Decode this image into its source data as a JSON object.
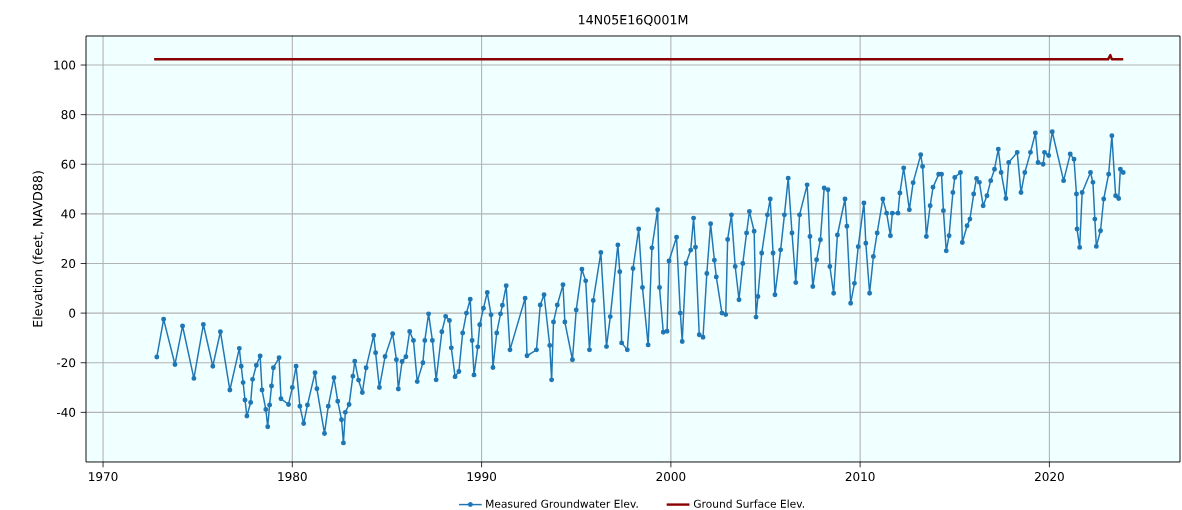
{
  "chart_data": {
    "type": "line",
    "title": "14N05E16Q001M",
    "ylabel": "Elevation (feet, NAVD88)",
    "xlim": [
      1969.1,
      2026.9
    ],
    "ylim": [
      -60,
      111.7
    ],
    "xticks": [
      1970,
      1980,
      1990,
      2000,
      2010,
      2020
    ],
    "yticks": [
      -40,
      -20,
      0,
      20,
      40,
      60,
      80,
      100
    ],
    "grid": true,
    "legend": "bottom",
    "series": [
      {
        "name": "Measured Groundwater Elev.",
        "color": "#1f77b4",
        "marker": "circle",
        "line_style": "solid",
        "x": [
          1972.84,
          1973.2,
          1973.8,
          1974.2,
          1974.8,
          1975.3,
          1975.8,
          1976.2,
          1976.7,
          1977.2,
          1977.3,
          1977.4,
          1977.5,
          1977.6,
          1977.8,
          1977.9,
          1978.1,
          1978.3,
          1978.4,
          1978.6,
          1978.7,
          1978.8,
          1978.9,
          1979.0,
          1979.3,
          1979.4,
          1979.8,
          1980.0,
          1980.2,
          1980.4,
          1980.6,
          1980.8,
          1981.2,
          1981.3,
          1981.7,
          1981.9,
          1982.2,
          1982.4,
          1982.6,
          1982.7,
          1982.8,
          1983.0,
          1983.2,
          1983.3,
          1983.5,
          1983.7,
          1983.9,
          1984.3,
          1984.4,
          1984.6,
          1984.9,
          1985.3,
          1985.5,
          1985.6,
          1985.8,
          1986.0,
          1986.2,
          1986.4,
          1986.6,
          1986.9,
          1987.0,
          1987.2,
          1987.4,
          1987.6,
          1987.9,
          1988.1,
          1988.3,
          1988.4,
          1988.6,
          1988.8,
          1989.0,
          1989.2,
          1989.4,
          1989.5,
          1989.6,
          1989.8,
          1989.9,
          1990.1,
          1990.3,
          1990.5,
          1990.6,
          1990.8,
          1991.0,
          1991.1,
          1991.3,
          1991.5,
          1992.3,
          1992.4,
          1992.9,
          1993.1,
          1993.3,
          1993.6,
          1993.7,
          1993.8,
          1994.0,
          1994.3,
          1994.4,
          1994.8,
          1995.0,
          1995.3,
          1995.5,
          1995.7,
          1995.9,
          1996.3,
          1996.6,
          1996.8,
          1997.2,
          1997.3,
          1997.4,
          1997.7,
          1998.0,
          1998.3,
          1998.5,
          1998.8,
          1999.0,
          1999.3,
          1999.4,
          1999.6,
          1999.8,
          1999.9,
          2000.3,
          2000.5,
          2000.6,
          2000.8,
          2001.05,
          2001.2,
          2001.3,
          2001.5,
          2001.7,
          2001.9,
          2002.1,
          2002.3,
          2002.4,
          2002.7,
          2002.9,
          2003.0,
          2003.2,
          2003.4,
          2003.6,
          2003.8,
          2004.0,
          2004.15,
          2004.4,
          2004.5,
          2004.6,
          2004.8,
          2005.1,
          2005.25,
          2005.4,
          2005.5,
          2005.8,
          2006.0,
          2006.2,
          2006.4,
          2006.6,
          2006.8,
          2007.2,
          2007.35,
          2007.5,
          2007.7,
          2007.9,
          2008.1,
          2008.3,
          2008.4,
          2008.6,
          2008.8,
          2009.2,
          2009.3,
          2009.5,
          2009.7,
          2009.9,
          2010.2,
          2010.3,
          2010.5,
          2010.7,
          2010.9,
          2011.2,
          2011.4,
          2011.6,
          2011.7,
          2012.0,
          2012.1,
          2012.3,
          2012.6,
          2012.8,
          2013.2,
          2013.3,
          2013.5,
          2013.7,
          2013.85,
          2014.15,
          2014.3,
          2014.4,
          2014.55,
          2014.7,
          2014.9,
          2015.0,
          2015.3,
          2015.4,
          2015.65,
          2015.8,
          2016.0,
          2016.15,
          2016.3,
          2016.5,
          2016.7,
          2016.9,
          2017.1,
          2017.3,
          2017.45,
          2017.7,
          2017.85,
          2018.3,
          2018.5,
          2018.7,
          2019.0,
          2019.26,
          2019.4,
          2019.67,
          2019.74,
          2019.96,
          2020.15,
          2020.75,
          2021.1,
          2021.3,
          2021.43,
          2021.46,
          2021.6,
          2021.73,
          2022.17,
          2022.3,
          2022.4,
          2022.48,
          2022.7,
          2022.87,
          2023.13,
          2023.3,
          2023.5,
          2023.66,
          2023.75,
          2023.9
        ],
        "values": [
          -17.7,
          -2.5,
          -20.7,
          -5.2,
          -26.3,
          -4.6,
          -21.4,
          -7.5,
          -31,
          -14.2,
          -21.4,
          -28,
          -35,
          -41.5,
          -36,
          -26.7,
          -21,
          -17.3,
          -31,
          -38.8,
          -45.8,
          -37,
          -29.4,
          -22,
          -18,
          -34.5,
          -36.8,
          -30,
          -21.4,
          -37.5,
          -44.5,
          -37,
          -24,
          -30.5,
          -48.5,
          -37.5,
          -26,
          -35.5,
          -43,
          -52.3,
          -40,
          -36.8,
          -25.4,
          -19.4,
          -27,
          -32,
          -22,
          -9,
          -16,
          -30,
          -17.5,
          -8.3,
          -18.8,
          -30.6,
          -19.5,
          -17.6,
          -7.4,
          -11,
          -27.6,
          -20,
          -11,
          -0.3,
          -11,
          -26.9,
          -7.5,
          -1.3,
          -3,
          -14,
          -25.6,
          -23.5,
          -8,
          0,
          5.6,
          -11,
          -24.9,
          -13.6,
          -4.7,
          2,
          8.3,
          -0.7,
          -21.9,
          -8,
          -0.3,
          3.2,
          11,
          -14.8,
          6,
          -17.2,
          -14.8,
          3.3,
          7.4,
          -13,
          -26.9,
          -3.6,
          3.3,
          11.4,
          -3.6,
          -18.8,
          1.3,
          17.7,
          13,
          -14.8,
          5.1,
          24.4,
          -13.5,
          -1.4,
          27.5,
          16.7,
          -12,
          -14.8,
          18,
          33.9,
          10.3,
          -12.8,
          26.3,
          41.7,
          10.3,
          -7.7,
          -7.3,
          21,
          30.6,
          0,
          -11.4,
          20,
          25.4,
          38.3,
          26.6,
          -8.7,
          -9.7,
          16,
          36,
          21.3,
          14.6,
          0,
          -0.6,
          29.7,
          39.6,
          18.8,
          5.4,
          20,
          32.3,
          41,
          33,
          -1.6,
          6.7,
          24.2,
          39.6,
          46,
          24.2,
          7.4,
          25.5,
          39.6,
          54.4,
          32.3,
          12.3,
          39.6,
          51.7,
          30.9,
          10.7,
          21.5,
          29.6,
          50.4,
          49.7,
          18.8,
          8,
          31.5,
          46,
          35,
          4,
          12,
          26.8,
          44.4,
          28.2,
          8,
          22.8,
          32.3,
          46,
          40.3,
          31.2,
          40.3,
          40.3,
          48.4,
          58.5,
          41.7,
          52.6,
          63.8,
          59.1,
          30.9,
          43.3,
          50.7,
          56,
          56,
          41.3,
          25.1,
          31.2,
          48.6,
          54.7,
          56.7,
          28.5,
          35.2,
          37.9,
          48,
          54.3,
          52.7,
          43.3,
          47.3,
          53.4,
          58,
          66.1,
          56.7,
          46.2,
          60.7,
          64.8,
          48.6,
          56.7,
          64.8,
          72.6,
          60.7,
          60,
          64.8,
          63.5,
          73.1,
          53.4,
          64.1,
          62,
          48,
          33.9,
          26.5,
          48.6,
          56.7,
          52.7,
          37.9,
          26.9,
          33.2,
          46,
          56,
          71.5,
          47.3,
          46.2,
          58,
          56.7
        ]
      },
      {
        "name": "Ground Surface Elev.",
        "color": "#8b0000",
        "marker": "none",
        "line_style": "solid",
        "x": [
          1972.7,
          2023.1,
          2023.22,
          2023.3,
          2023.9
        ],
        "values": [
          102.3,
          102.3,
          104,
          102.3,
          102.3
        ]
      }
    ]
  }
}
